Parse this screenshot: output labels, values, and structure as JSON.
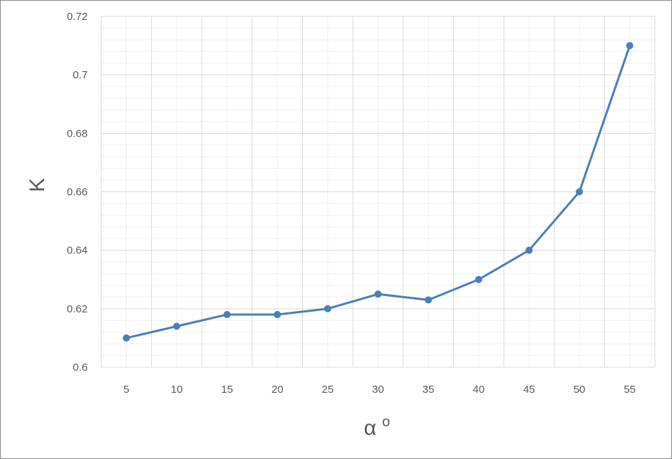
{
  "chart_data": {
    "type": "line",
    "title": "",
    "xlabel": "αo",
    "ylabel": "K",
    "categories": [
      "5",
      "10",
      "15",
      "20",
      "25",
      "30",
      "35",
      "40",
      "45",
      "50",
      "55"
    ],
    "series": [
      {
        "values": [
          0.61,
          0.614,
          0.618,
          0.618,
          0.62,
          0.625,
          0.623,
          0.63,
          0.64,
          0.66,
          0.71
        ],
        "color": "#4a7ebb"
      }
    ],
    "ylim": [
      0.6,
      0.72
    ],
    "yticks": [
      "0.6",
      "0.62",
      "0.64",
      "0.66",
      "0.68",
      "0.7",
      "0.72"
    ],
    "grid": true,
    "minor_grid": true,
    "legend": "none",
    "colors": {
      "major_grid": "#d9d9d9",
      "minor_grid": "#efefef",
      "border": "#8c8c8c",
      "tick_text": "#595959"
    }
  }
}
